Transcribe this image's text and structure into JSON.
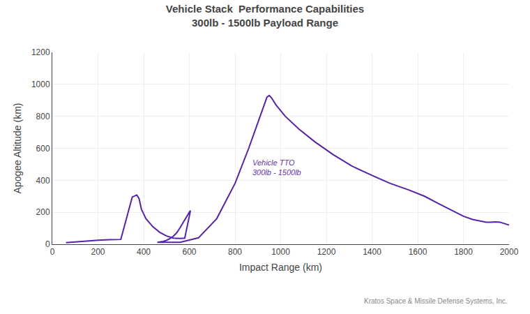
{
  "chart_data": {
    "type": "line",
    "title": "Vehicle Stack  Performance Capabilities",
    "subtitle": "300lb - 1500lb Payload Range",
    "xlabel": "Impact Range (km)",
    "ylabel": "Apogee Altitude (km)",
    "x": [
      60,
      100,
      150,
      200,
      250,
      300,
      350,
      370,
      380,
      390,
      410,
      440,
      470,
      500,
      530,
      560,
      580,
      600,
      605,
      600,
      590,
      575,
      560,
      545,
      530,
      515,
      500,
      485,
      470,
      460,
      465,
      500,
      560,
      640,
      720,
      800,
      860,
      910,
      940,
      950,
      960,
      980,
      1020,
      1080,
      1150,
      1230,
      1310,
      1400,
      1480,
      1560,
      1630,
      1690,
      1750,
      1800,
      1840,
      1870,
      1900,
      1920,
      1940,
      1960,
      1980,
      2000
    ],
    "values": [
      10,
      15,
      20,
      25,
      28,
      30,
      295,
      308,
      285,
      220,
      160,
      110,
      75,
      52,
      38,
      36,
      38,
      165,
      210,
      200,
      175,
      140,
      105,
      72,
      50,
      35,
      24,
      18,
      14,
      12,
      12,
      12,
      12,
      40,
      160,
      380,
      600,
      800,
      920,
      930,
      915,
      870,
      800,
      720,
      640,
      560,
      490,
      430,
      380,
      340,
      300,
      255,
      210,
      175,
      155,
      145,
      138,
      138,
      140,
      138,
      130,
      120
    ],
    "color": "#5522AA",
    "xlim": [
      0,
      2000
    ],
    "ylim": [
      0,
      1200
    ],
    "xticks": [
      0,
      200,
      400,
      600,
      800,
      1000,
      1200,
      1400,
      1600,
      1800,
      2000
    ],
    "yticks": [
      0,
      200,
      400,
      600,
      800,
      1000,
      1200
    ],
    "grid": true,
    "annotations": [
      {
        "text": "Vehicle TTO\n300lb - 1500lb",
        "x": 870,
        "y": 480,
        "color": "#6633AA"
      },
      {
        "text": "Kratos Space & Missile Defense Systems, Inc."
      }
    ]
  }
}
